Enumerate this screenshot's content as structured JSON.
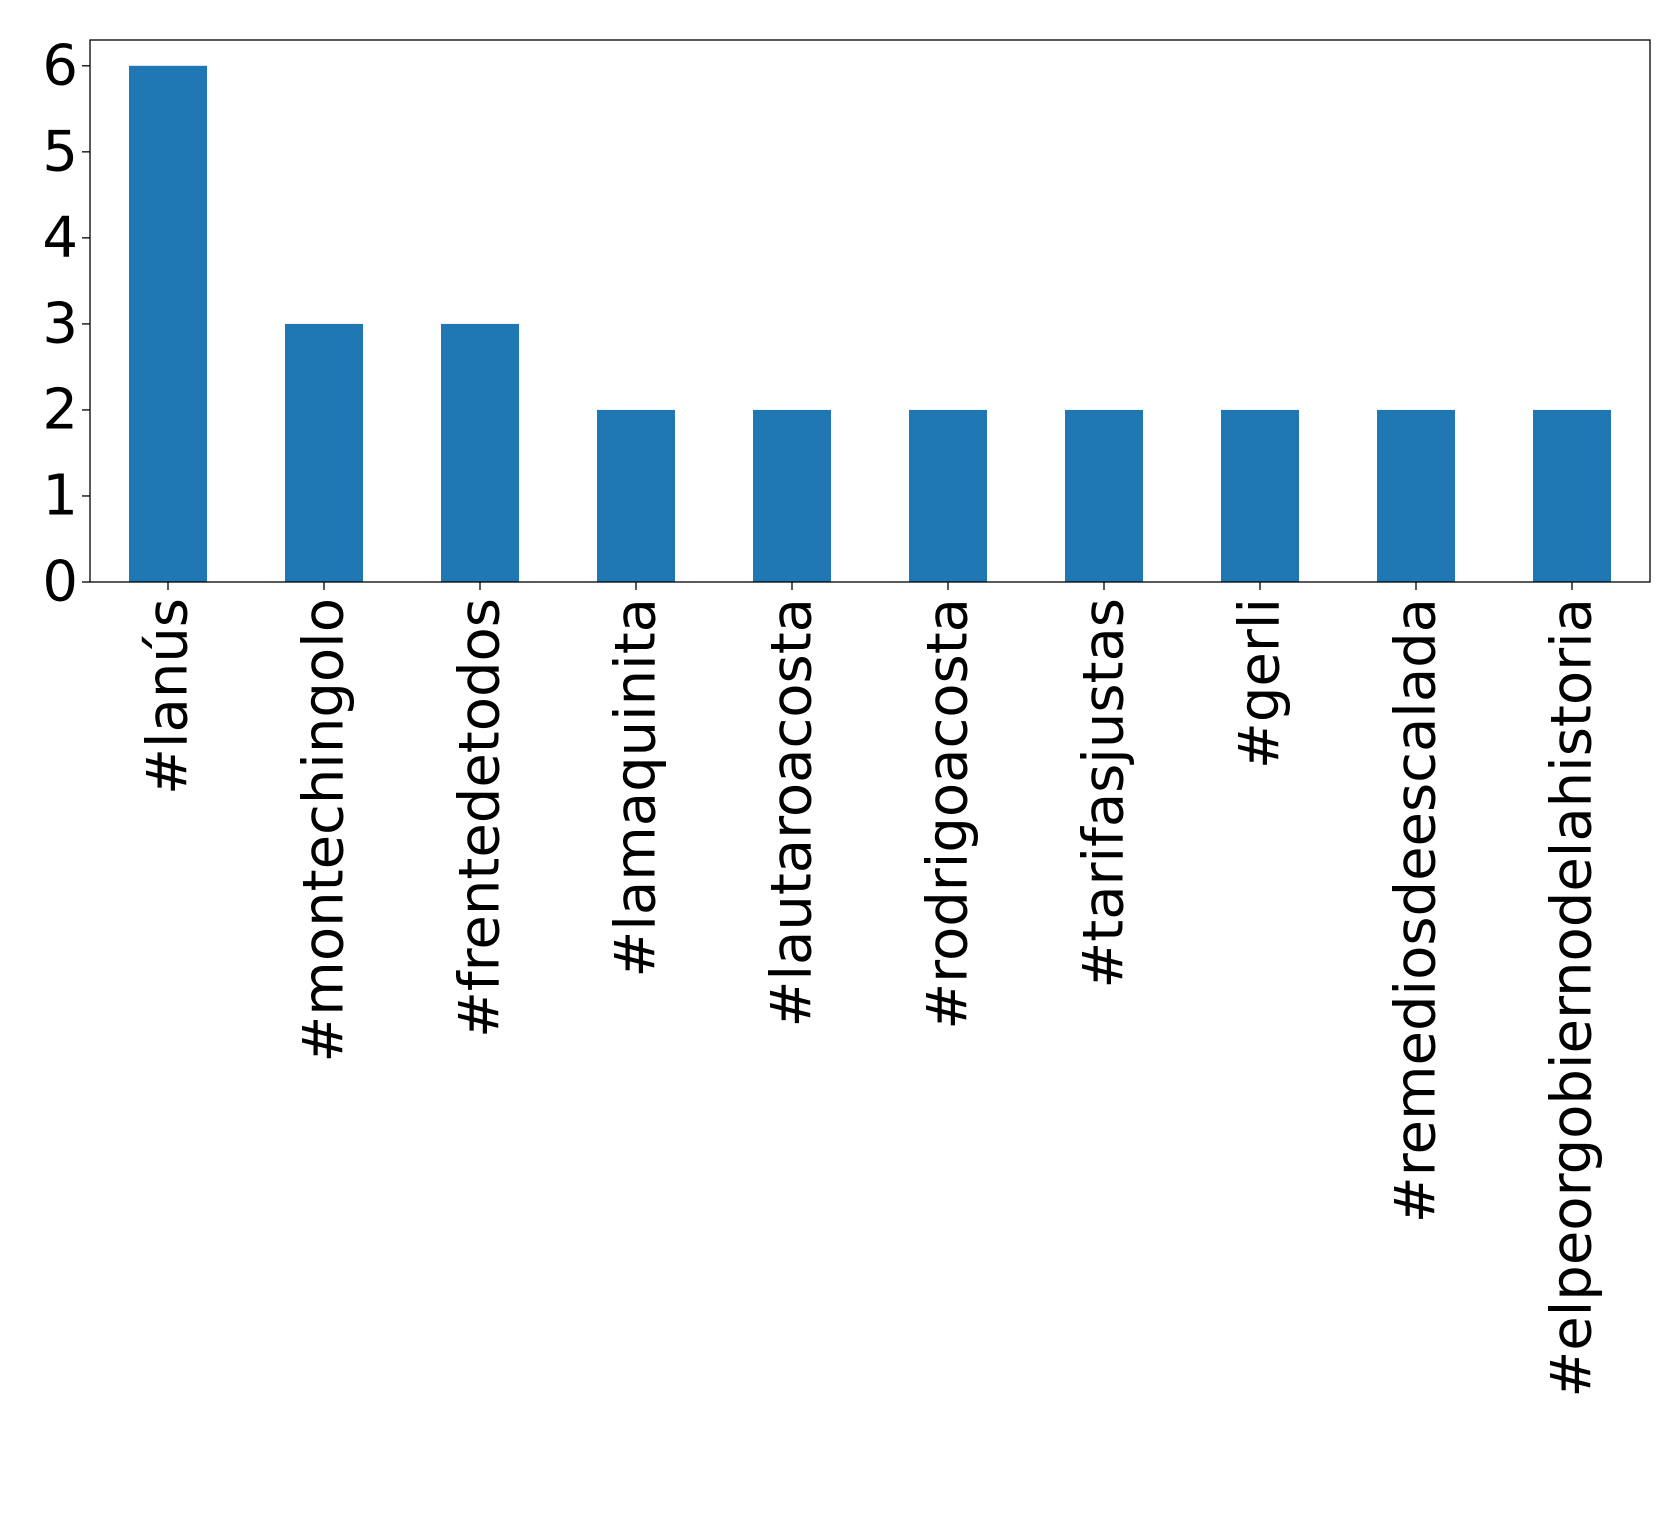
{
  "chart_data": {
    "type": "bar",
    "title": "",
    "xlabel": "",
    "ylabel": "",
    "categories": [
      "#lanús",
      "#montechingolo",
      "#frentedetodos",
      "#lamaquinita",
      "#lautaroacosta",
      "#rodrigoacosta",
      "#tarifasjustas",
      "#gerli",
      "#remediosdeescalada",
      "#elpeorgobiernodelahistoria"
    ],
    "values": [
      6,
      3,
      3,
      2,
      2,
      2,
      2,
      2,
      2,
      2
    ],
    "ylim": [
      0,
      6.3
    ],
    "yticks": [
      0,
      1,
      2,
      3,
      4,
      5,
      6
    ],
    "ytick_labels": [
      "0",
      "1",
      "2",
      "3",
      "4",
      "5",
      "6"
    ],
    "bar_color": "#1f77b4",
    "grid": false,
    "legend": "none"
  }
}
